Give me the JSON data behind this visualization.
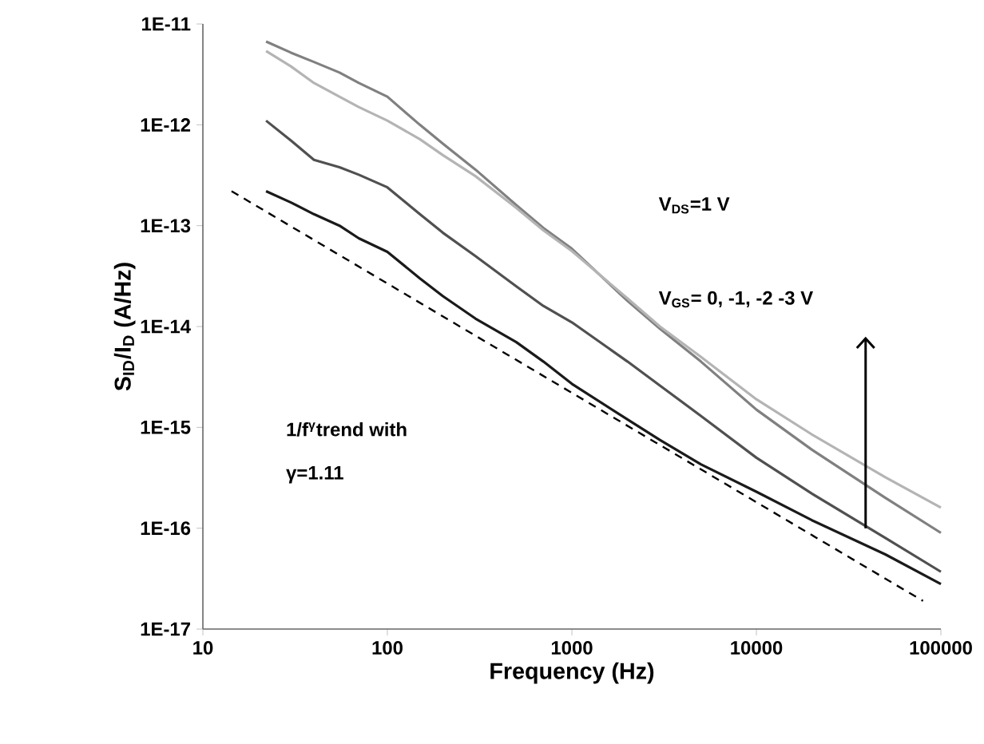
{
  "chart_data": {
    "type": "line",
    "xlabel": "Frequency (Hz)",
    "ylabel": "S$_{ID}$/I$_{D}$ (A/Hz)",
    "log": "xy",
    "grid": false,
    "marker": "none",
    "xlim": [
      10,
      100000
    ],
    "xticks": [
      10,
      100,
      1000,
      10000,
      100000
    ],
    "ylim": [
      1e-17,
      1e-11
    ],
    "yticks": [
      {
        "value": 1e-17,
        "label": "1E-17"
      },
      {
        "value": 1e-16,
        "label": "1E-16"
      },
      {
        "value": 1e-15,
        "label": "1E-15"
      },
      {
        "value": 1e-14,
        "label": "1E-14"
      },
      {
        "value": 1e-13,
        "label": "1E-13"
      },
      {
        "value": 1e-12,
        "label": "1E-12"
      },
      {
        "value": 1e-11,
        "label": "1E-11"
      }
    ],
    "x": [
      22,
      30,
      40,
      55,
      70,
      100,
      150,
      200,
      300,
      500,
      700,
      1000,
      2000,
      3000,
      5000,
      10000,
      20000,
      50000,
      100000
    ],
    "series": [
      {
        "color": "#808080",
        "values": [
          6.7e-12,
          5.2e-12,
          4.2e-12,
          3.3e-12,
          2.6e-12,
          1.9e-12,
          1e-12,
          6.5e-13,
          3.6e-13,
          1.6e-13,
          9.5e-14,
          5.9e-14,
          1.8e-14,
          9.5e-15,
          4.5e-15,
          1.5e-15,
          6e-16,
          2e-16,
          9e-17
        ]
      },
      {
        "color": "#b4b4b4",
        "values": [
          5.4e-12,
          3.8e-12,
          2.6e-12,
          1.9e-12,
          1.5e-12,
          1.1e-12,
          7.2e-13,
          5e-13,
          3.1e-13,
          1.5e-13,
          9e-14,
          5.6e-14,
          1.9e-14,
          1e-14,
          5e-15,
          1.9e-15,
          8.5e-16,
          3.2e-16,
          1.6e-16
        ]
      },
      {
        "color": "#505050",
        "values": [
          1.1e-12,
          7e-13,
          4.5e-13,
          3.8e-13,
          3.2e-13,
          2.4e-13,
          1.3e-13,
          8.5e-14,
          5e-14,
          2.5e-14,
          1.6e-14,
          1.1e-14,
          4.5e-15,
          2.6e-15,
          1.3e-15,
          5e-16,
          2.2e-16,
          8e-17,
          3.7e-17
        ]
      },
      {
        "color": "#1a1a1a",
        "values": [
          2.2e-13,
          1.7e-13,
          1.3e-13,
          1e-13,
          7.5e-14,
          5.5e-14,
          3e-14,
          2e-14,
          1.2e-14,
          7e-15,
          4.5e-15,
          2.7e-15,
          1.2e-15,
          7.5e-16,
          4.3e-16,
          2.3e-16,
          1.2e-16,
          5.5e-17,
          2.8e-17
        ]
      },
      {
        "type": "line",
        "line_style": "dashed",
        "color": "#000000",
        "x": [
          14.3,
          80000
        ],
        "values": [
          2.2e-13,
          1.9e-17
        ]
      }
    ],
    "annotations": [
      "V$_{DS}$=1 V",
      "V$_{GS}$= 0, -1, -2 -3 V",
      "1/f$^{γ}$trend with",
      "γ=1.11"
    ]
  }
}
